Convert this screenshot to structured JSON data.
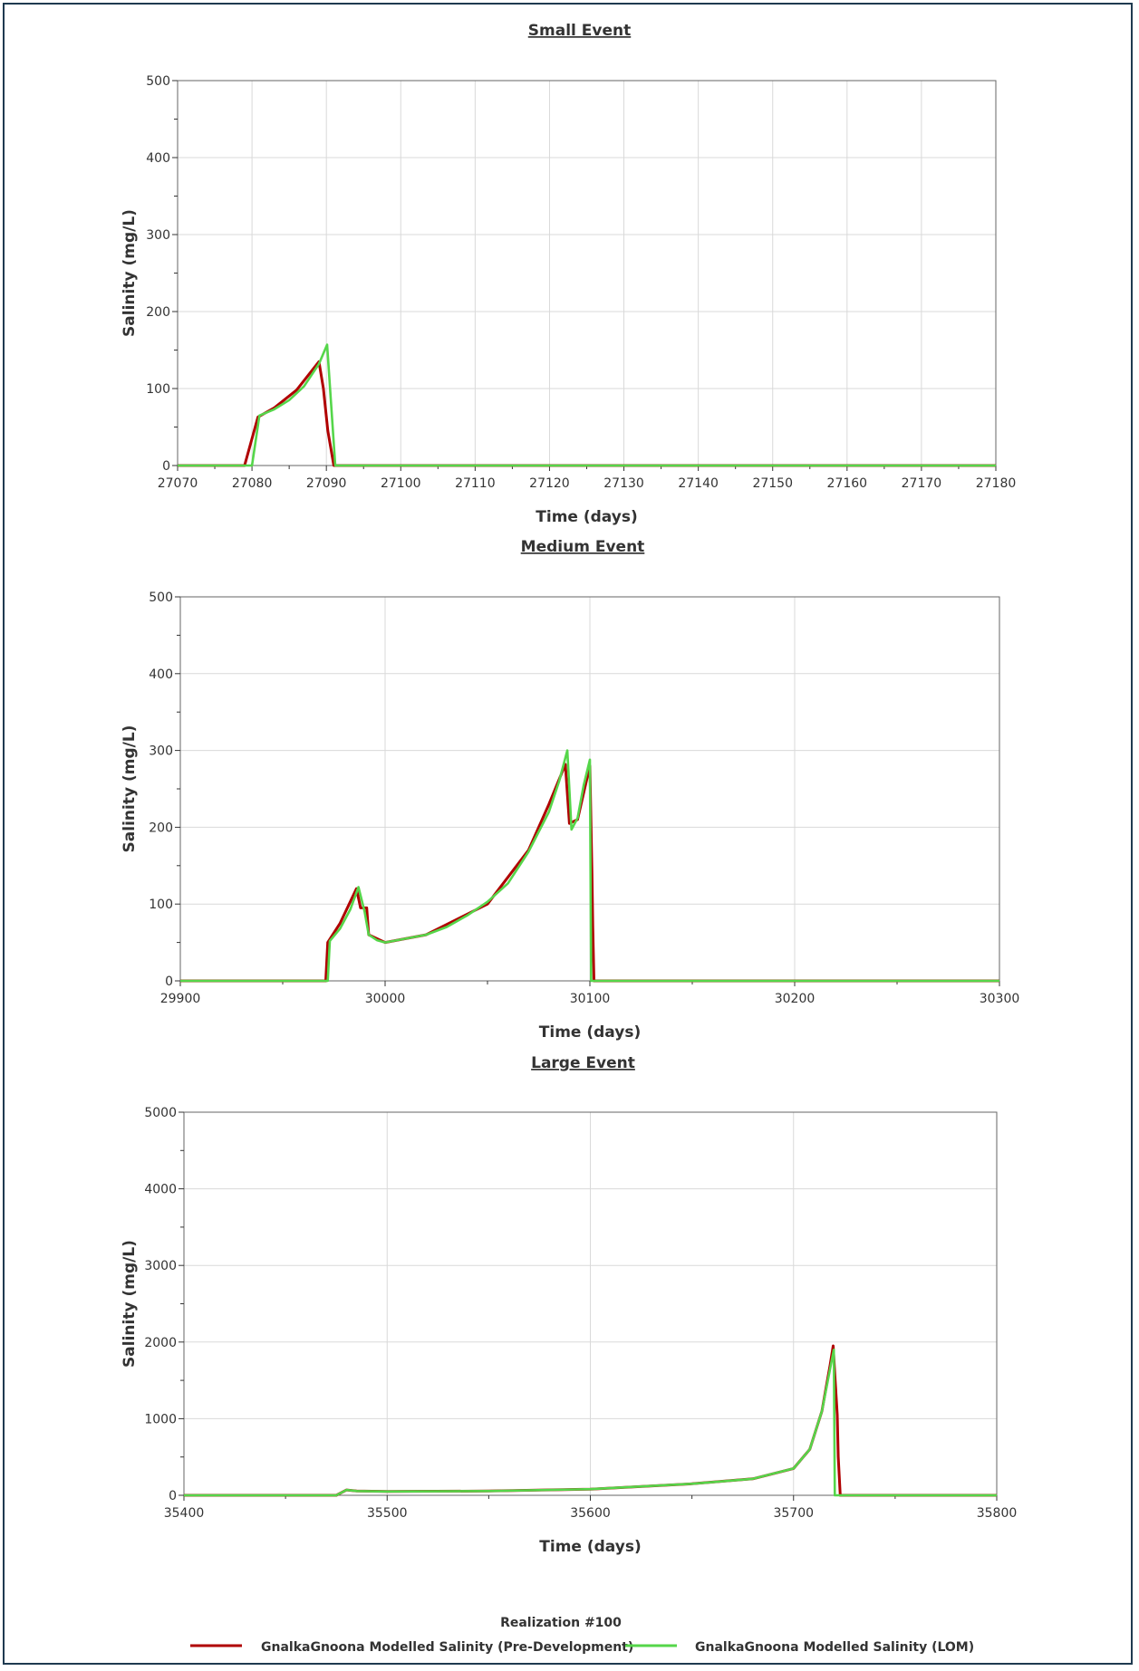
{
  "colors": {
    "pre_development": "#b00000",
    "lom": "#55d64a",
    "grid": "#d9d9d9",
    "axis": "#333333",
    "text": "#333333"
  },
  "legend": {
    "title": "Realization #100",
    "items": [
      {
        "label": "GnalkaGnoona Modelled Salinity (Pre-Development)",
        "color": "#b00000"
      },
      {
        "label": "GnalkaGnoona Modelled Salinity (LOM)",
        "color": "#55d64a"
      }
    ],
    "placement": "bottom-center"
  },
  "chart_data": [
    {
      "type": "line",
      "title": "Small Event",
      "xlabel": "Time (days)",
      "ylabel": "Salinity (mg/L)",
      "xlim": [
        27070,
        27180
      ],
      "ylim": [
        0,
        500
      ],
      "xticks": [
        27070,
        27080,
        27090,
        27100,
        27110,
        27120,
        27130,
        27140,
        27150,
        27160,
        27170,
        27180
      ],
      "yticks": [
        0,
        100,
        200,
        300,
        400,
        500
      ],
      "grid": true,
      "series": [
        {
          "name": "GnalkaGnoona Modelled Salinity (Pre-Development)",
          "color": "#b00000",
          "x": [
            27070,
            27079,
            27080.8,
            27083,
            27086,
            27089,
            27089.6,
            27090.2,
            27091,
            27092,
            27180
          ],
          "y": [
            0,
            0,
            63,
            75,
            98,
            135,
            100,
            45,
            0,
            0,
            0
          ]
        },
        {
          "name": "GnalkaGnoona Modelled Salinity (LOM)",
          "color": "#55d64a",
          "x": [
            27070,
            27080,
            27081,
            27083,
            27085,
            27087,
            27089,
            27090.1,
            27091.2,
            27092,
            27180
          ],
          "y": [
            0,
            0,
            65,
            73,
            85,
            103,
            132,
            157,
            0,
            0,
            0
          ]
        }
      ]
    },
    {
      "type": "line",
      "title": "Medium Event",
      "xlabel": "Time (days)",
      "ylabel": "Salinity (mg/L)",
      "xlim": [
        29900,
        30300
      ],
      "ylim": [
        0,
        500
      ],
      "xticks": [
        29900,
        30000,
        30100,
        30200,
        30300
      ],
      "yticks": [
        0,
        100,
        200,
        300,
        400,
        500
      ],
      "grid": true,
      "series": [
        {
          "name": "GnalkaGnoona Modelled Salinity (Pre-Development)",
          "color": "#b00000",
          "x": [
            29900,
            29971,
            29972,
            29978,
            29986,
            29988,
            29991,
            29992,
            30000,
            30020,
            30050,
            30070,
            30080,
            30088,
            30090,
            30094,
            30100,
            30101,
            30101.4,
            30102,
            30300
          ],
          "y": [
            0,
            0,
            50,
            75,
            120,
            95,
            95,
            60,
            50,
            60,
            100,
            170,
            230,
            282,
            205,
            210,
            280,
            140,
            70,
            0,
            0
          ]
        },
        {
          "name": "GnalkaGnoona Modelled Salinity (LOM)",
          "color": "#55d64a",
          "x": [
            29900,
            29972,
            29973,
            29978,
            29983,
            29987,
            29990,
            29992,
            29996,
            30000,
            30010,
            30020,
            30030,
            30040,
            30050,
            30060,
            30070,
            30080,
            30085,
            30089,
            30091,
            30094,
            30097,
            30100,
            30100.6,
            30300
          ],
          "y": [
            0,
            0,
            52,
            68,
            93,
            122,
            90,
            60,
            53,
            50,
            55,
            60,
            70,
            85,
            103,
            127,
            168,
            220,
            260,
            300,
            197,
            212,
            255,
            288,
            0,
            0
          ]
        }
      ]
    },
    {
      "type": "line",
      "title": "Large Event",
      "xlabel": "Time (days)",
      "ylabel": "Salinity (mg/L)",
      "xlim": [
        35400,
        35800
      ],
      "ylim": [
        0,
        5000
      ],
      "xticks": [
        35400,
        35500,
        35600,
        35700,
        35800
      ],
      "yticks": [
        0,
        1000,
        2000,
        3000,
        4000,
        5000
      ],
      "grid": true,
      "series": [
        {
          "name": "GnalkaGnoona Modelled Salinity (Pre-Development)",
          "color": "#b00000",
          "x": [
            35400,
            35475,
            35480,
            35485,
            35500,
            35550,
            35600,
            35650,
            35680,
            35700,
            35708,
            35714,
            35718,
            35719.5,
            35720.5,
            35721.5,
            35722,
            35723,
            35800
          ],
          "y": [
            0,
            0,
            70,
            55,
            50,
            55,
            80,
            150,
            215,
            350,
            600,
            1100,
            1700,
            1950,
            1500,
            1050,
            500,
            0,
            0
          ]
        },
        {
          "name": "GnalkaGnoona Modelled Salinity (LOM)",
          "color": "#55d64a",
          "x": [
            35400,
            35475,
            35480,
            35485,
            35500,
            35550,
            35600,
            35650,
            35680,
            35700,
            35708,
            35714,
            35718,
            35719.8,
            35720.3,
            35800
          ],
          "y": [
            0,
            0,
            70,
            55,
            50,
            55,
            80,
            150,
            215,
            350,
            600,
            1100,
            1650,
            1900,
            0,
            0
          ]
        }
      ]
    }
  ]
}
